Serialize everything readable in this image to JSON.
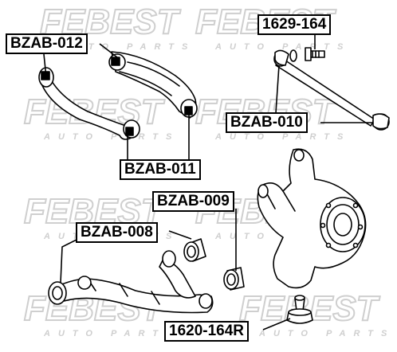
{
  "watermark": {
    "brand": "FEBEST",
    "tagline": "AUTO PARTS",
    "color": "#d0d0d0"
  },
  "part_labels": {
    "bzab_012": "BZAB-012",
    "bzab_011": "BZAB-011",
    "bzab_010": "BZAB-010",
    "bzab_009": "BZAB-009",
    "bzab_008": "BZAB-008",
    "p1629_164": "1629-164",
    "p1620_164r": "1620-164R"
  },
  "colors": {
    "line": "#000000",
    "background": "#ffffff"
  }
}
